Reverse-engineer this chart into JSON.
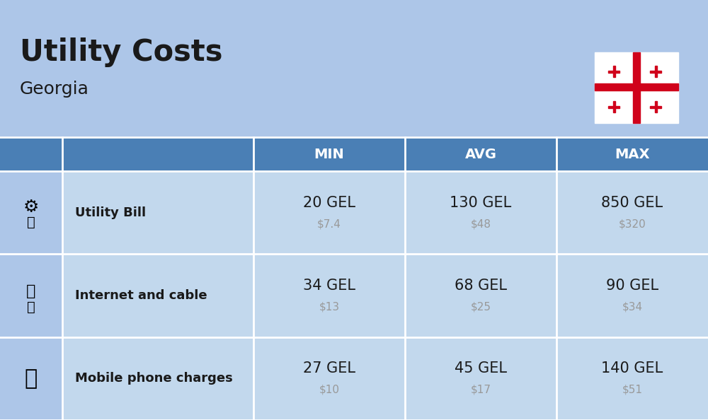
{
  "title": "Utility Costs",
  "subtitle": "Georgia",
  "background_color": "#adc6e8",
  "header_bg_color": "#4a7fb5",
  "header_text_color": "#ffffff",
  "row_bg_color": "#c2d8ed",
  "icon_bg_color": "#adc6e8",
  "text_color": "#1a1a1a",
  "subtext_color": "#999999",
  "divider_color": "#ffffff",
  "col_headers": [
    "MIN",
    "AVG",
    "MAX"
  ],
  "rows": [
    {
      "label": "Utility Bill",
      "icon": "utility",
      "min_gel": "20 GEL",
      "min_usd": "$7.4",
      "avg_gel": "130 GEL",
      "avg_usd": "$48",
      "max_gel": "850 GEL",
      "max_usd": "$320"
    },
    {
      "label": "Internet and cable",
      "icon": "internet",
      "min_gel": "34 GEL",
      "min_usd": "$13",
      "avg_gel": "68 GEL",
      "avg_usd": "$25",
      "max_gel": "90 GEL",
      "max_usd": "$34"
    },
    {
      "label": "Mobile phone charges",
      "icon": "mobile",
      "min_gel": "27 GEL",
      "min_usd": "$10",
      "avg_gel": "45 GEL",
      "avg_usd": "$17",
      "max_gel": "140 GEL",
      "max_usd": "$51"
    }
  ],
  "title_fontsize": 30,
  "subtitle_fontsize": 18,
  "header_fontsize": 14,
  "label_fontsize": 13,
  "value_fontsize": 15,
  "subvalue_fontsize": 11,
  "flag_cross_color": "#d0021b",
  "flag_bg_color": "#ffffff"
}
